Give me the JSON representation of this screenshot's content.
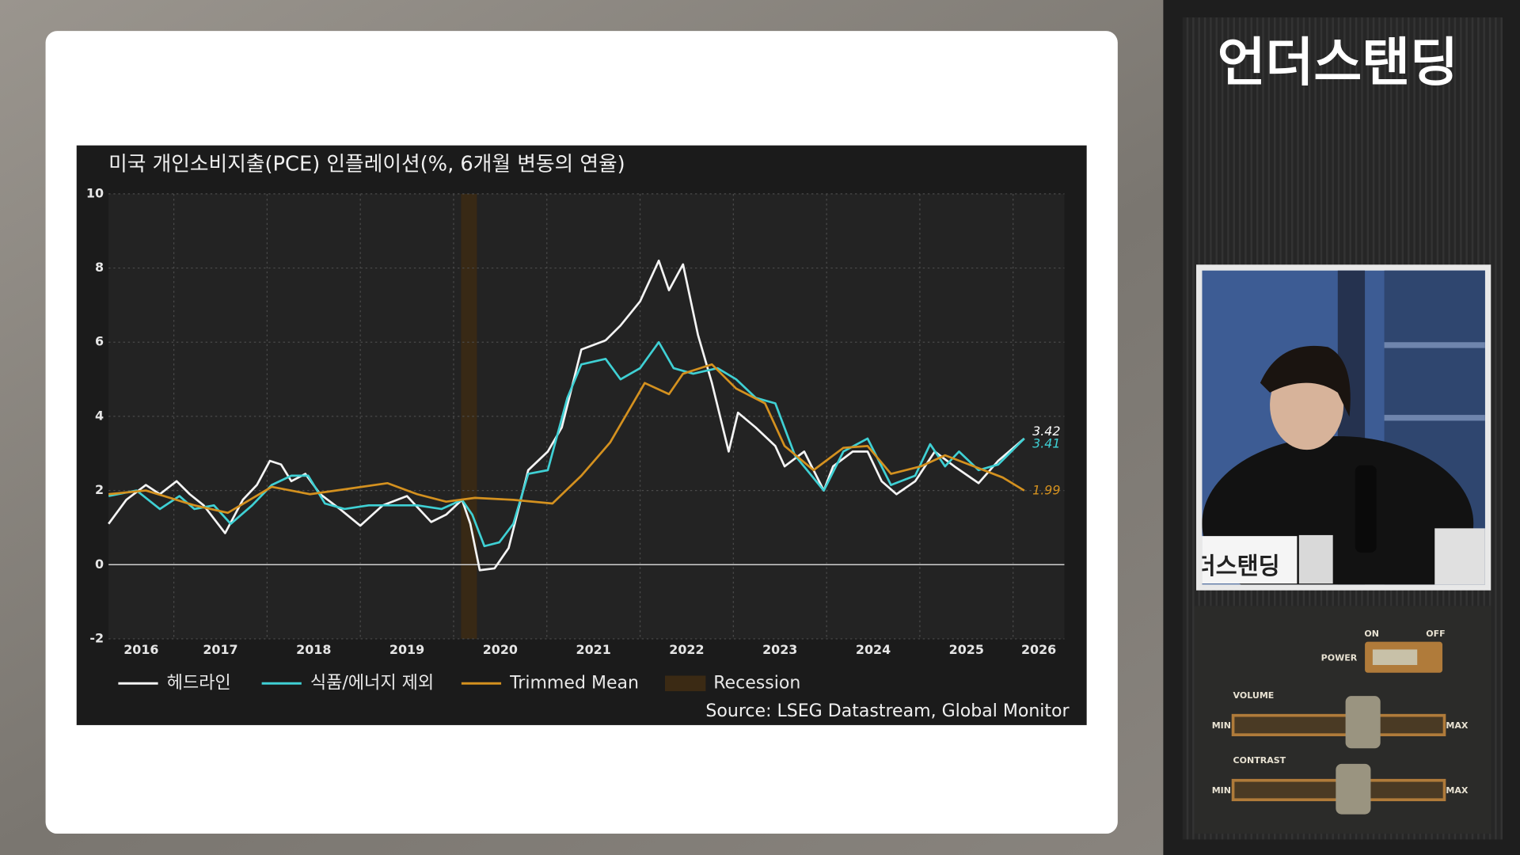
{
  "chart_data": {
    "type": "line",
    "title": "미국 개인소비지출(PCE) 인플레이션(%, 6개월 변동의 연율)",
    "source": "Source: LSEG Datastream, Global Monitor",
    "xlim": [
      2016.3,
      2026.55
    ],
    "xticks": [
      2016,
      2017,
      2018,
      2019,
      2020,
      2021,
      2022,
      2023,
      2024,
      2025,
      2026
    ],
    "ylim": [
      -2,
      10
    ],
    "yticks": [
      -2,
      0,
      2,
      4,
      6,
      8,
      10
    ],
    "grid": true,
    "bands": [
      {
        "name": "Recession",
        "color": "#3b2a14",
        "x": [
          2020.08,
          2020.25
        ]
      }
    ],
    "series": [
      {
        "name": "헤드라인",
        "color": "#f4f4f4",
        "end_label": 3.42,
        "x": [
          2016.3,
          2016.49,
          2016.7,
          2016.85,
          2017.03,
          2017.17,
          2017.32,
          2017.55,
          2017.74,
          2017.89,
          2018.03,
          2018.15,
          2018.26,
          2018.41,
          2018.57,
          2018.78,
          2019.0,
          2019.24,
          2019.5,
          2019.76,
          2019.92,
          2020.09,
          2020.18,
          2020.28,
          2020.44,
          2020.59,
          2020.8,
          2021.01,
          2021.16,
          2021.37,
          2021.63,
          2021.79,
          2022.0,
          2022.2,
          2022.31,
          2022.46,
          2022.62,
          2022.77,
          2022.95,
          2023.05,
          2023.24,
          2023.45,
          2023.55,
          2023.76,
          2023.97,
          2024.07,
          2024.28,
          2024.44,
          2024.59,
          2024.75,
          2024.95,
          2025.16,
          2025.37,
          2025.63,
          2025.84,
          2026.12
        ],
        "values": [
          1.1,
          1.75,
          2.15,
          1.9,
          2.25,
          1.9,
          1.6,
          0.85,
          1.75,
          2.15,
          2.8,
          2.7,
          2.25,
          2.45,
          1.9,
          1.5,
          1.05,
          1.6,
          1.85,
          1.15,
          1.35,
          1.75,
          1.1,
          -0.15,
          -0.1,
          0.45,
          2.55,
          3.05,
          3.7,
          5.8,
          6.05,
          6.45,
          7.1,
          8.2,
          7.4,
          8.1,
          6.2,
          4.9,
          3.05,
          4.1,
          3.7,
          3.2,
          2.65,
          3.05,
          2.0,
          2.65,
          3.05,
          3.05,
          2.25,
          1.9,
          2.25,
          3.05,
          2.65,
          2.2,
          2.8,
          3.4
        ]
      },
      {
        "name": "식품/에너지 제외",
        "color": "#3fd0d4",
        "end_label": 3.41,
        "x": [
          2016.3,
          2016.6,
          2016.85,
          2017.06,
          2017.22,
          2017.43,
          2017.61,
          2017.84,
          2018.05,
          2018.26,
          2018.44,
          2018.62,
          2018.83,
          2019.09,
          2019.35,
          2019.61,
          2019.87,
          2020.09,
          2020.2,
          2020.33,
          2020.49,
          2020.64,
          2020.8,
          2021.01,
          2021.22,
          2021.37,
          2021.63,
          2021.79,
          2022.0,
          2022.2,
          2022.36,
          2022.57,
          2022.83,
          2023.03,
          2023.24,
          2023.45,
          2023.66,
          2023.97,
          2024.18,
          2024.44,
          2024.69,
          2024.95,
          2025.11,
          2025.27,
          2025.42,
          2025.63,
          2025.84,
          2026.12
        ],
        "values": [
          1.85,
          2.0,
          1.5,
          1.85,
          1.5,
          1.6,
          1.1,
          1.6,
          2.15,
          2.4,
          2.4,
          1.65,
          1.5,
          1.6,
          1.6,
          1.6,
          1.5,
          1.75,
          1.35,
          0.5,
          0.6,
          1.1,
          2.45,
          2.55,
          4.5,
          5.4,
          5.55,
          5.0,
          5.3,
          6.0,
          5.3,
          5.15,
          5.3,
          5.0,
          4.5,
          4.35,
          2.95,
          2.0,
          3.05,
          3.4,
          2.15,
          2.4,
          3.25,
          2.65,
          3.05,
          2.55,
          2.7,
          3.4
        ]
      },
      {
        "name": "Trimmed Mean",
        "color": "#d4911f",
        "end_label": 1.99,
        "x": [
          2016.3,
          2016.7,
          2017.22,
          2017.58,
          2018.05,
          2018.46,
          2018.88,
          2019.29,
          2019.61,
          2019.92,
          2020.23,
          2020.64,
          2021.06,
          2021.37,
          2021.68,
          2022.05,
          2022.31,
          2022.46,
          2022.77,
          2023.03,
          2023.34,
          2023.55,
          2023.86,
          2024.18,
          2024.44,
          2024.69,
          2025.01,
          2025.27,
          2025.58,
          2025.89,
          2026.12
        ],
        "values": [
          1.9,
          2.0,
          1.6,
          1.4,
          2.1,
          1.9,
          2.05,
          2.2,
          1.9,
          1.7,
          1.8,
          1.75,
          1.65,
          2.4,
          3.3,
          4.9,
          4.6,
          5.15,
          5.4,
          4.75,
          4.35,
          3.2,
          2.55,
          3.15,
          3.2,
          2.45,
          2.65,
          2.95,
          2.65,
          2.35,
          2.0
        ]
      }
    ]
  },
  "sidebar": {
    "brand": "언더스탠딩",
    "caption": "더스탠딩",
    "controls": {
      "on": "ON",
      "off": "OFF",
      "power": "POWER",
      "volume": "VOLUME",
      "contrast": "CONTRAST",
      "min": "MIN",
      "max": "MAX"
    }
  }
}
